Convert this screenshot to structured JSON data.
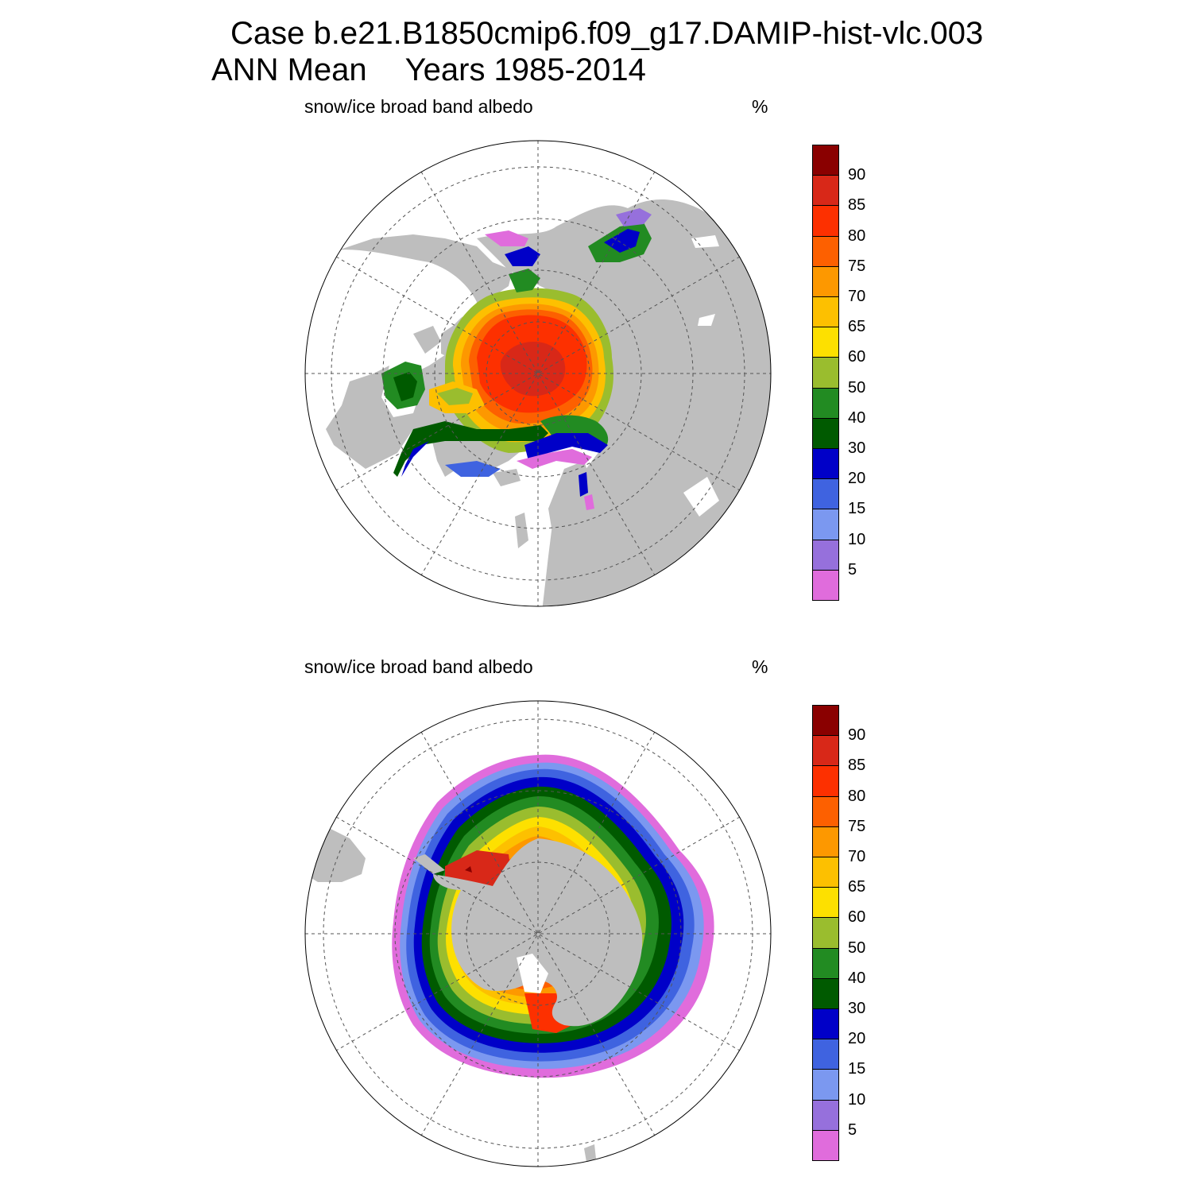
{
  "title": {
    "line1": "Case b.e21.B1850cmip6.f09_g17.DAMIP-hist-vlc.003",
    "season": "ANN Mean",
    "years": "Years 1985-2014"
  },
  "panels": [
    {
      "id": "north",
      "hemisphere": "north",
      "variable": "snow/ice broad band albedo",
      "units": "%"
    },
    {
      "id": "south",
      "hemisphere": "south",
      "variable": "snow/ice broad band albedo",
      "units": "%"
    }
  ],
  "colorbar": {
    "levels": [
      "5",
      "10",
      "15",
      "20",
      "30",
      "40",
      "50",
      "60",
      "65",
      "70",
      "75",
      "80",
      "85",
      "90"
    ],
    "colors": [
      "#e06cdc",
      "#9670dc",
      "#7b98f0",
      "#3f63e0",
      "#0000c8",
      "#005a00",
      "#228b22",
      "#9abd2e",
      "#fde000",
      "#fdc000",
      "#fd9800",
      "#fd6000",
      "#fd3000",
      "#d82818",
      "#8a0000"
    ]
  },
  "map_colors": {
    "land": "#bebebe",
    "ocean": "#ffffff",
    "grid": "#555555"
  }
}
